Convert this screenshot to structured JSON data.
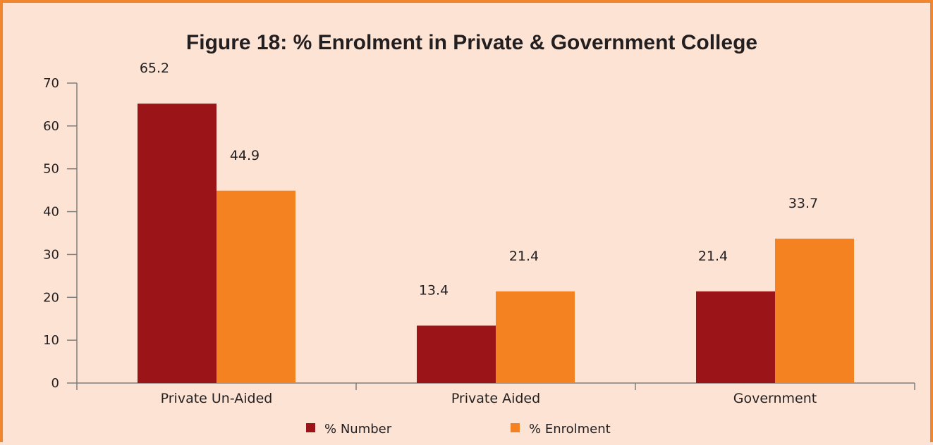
{
  "chart_data": {
    "type": "bar",
    "title": "Figure 18: % Enrolment in Private & Government College",
    "xlabel": "",
    "ylabel": "",
    "categories": [
      "Private Un-Aided",
      "Private Aided",
      "Government"
    ],
    "series": [
      {
        "name": "% Number",
        "color": "#9b1518",
        "values": [
          65.2,
          13.4,
          21.4
        ]
      },
      {
        "name": "% Enrolment",
        "color": "#f58220",
        "values": [
          44.9,
          21.4,
          33.7
        ]
      }
    ],
    "value_labels": [
      [
        "65.2",
        "13.4",
        "21.4"
      ],
      [
        "44.9",
        "21.4",
        "33.7"
      ]
    ],
    "ylim": [
      0,
      70
    ],
    "yticks": [
      "0",
      "10",
      "20",
      "30",
      "40",
      "50",
      "60",
      "70"
    ],
    "grid": false,
    "legend_position": "bottom"
  },
  "colors": {
    "background": "#fde3d4",
    "border": "#f2862e"
  }
}
